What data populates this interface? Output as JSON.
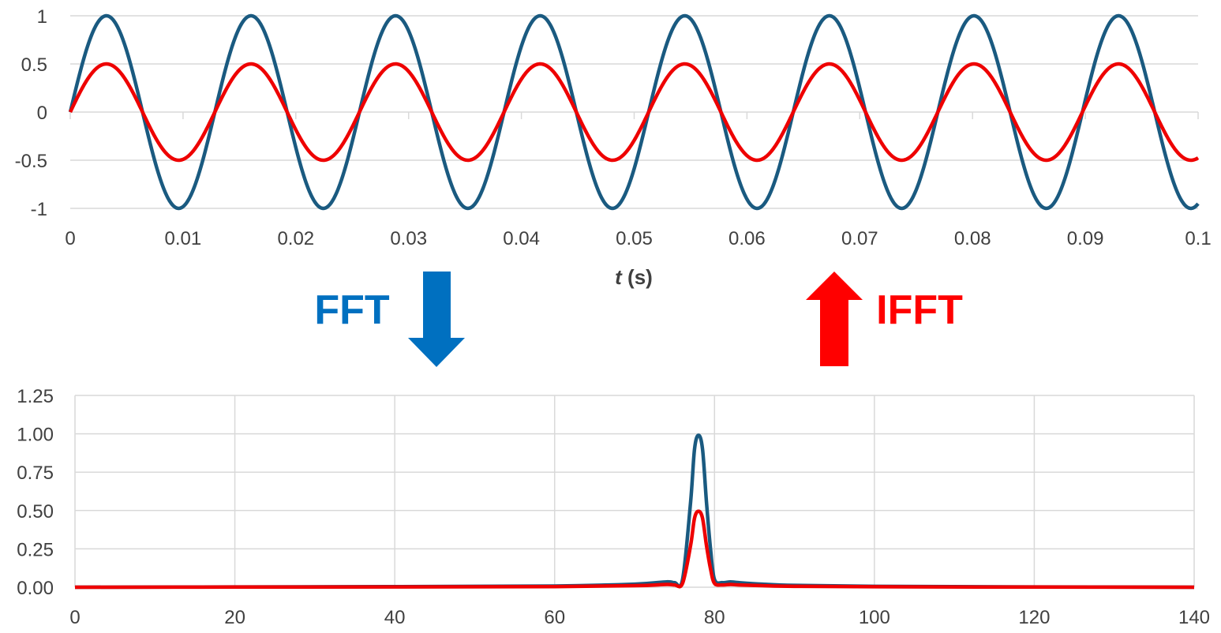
{
  "colors": {
    "signal_1": "#1a5a80",
    "signal_2": "#ee0000",
    "fft_accent": "#0070c0",
    "ifft_accent": "#ff0000",
    "grid": "#d9d9d9",
    "text": "#404040"
  },
  "annotations": {
    "fft_label": "FFT",
    "ifft_label": "IFFT",
    "fft_arrow_icon": "arrow-down-icon",
    "ifft_arrow_icon": "arrow-up-icon"
  },
  "chart_data": [
    {
      "type": "line",
      "title": "",
      "xlabel_italic": "t",
      "xlabel_rest": " (s)",
      "xlim": [
        0,
        0.1
      ],
      "ylim": [
        -1,
        1
      ],
      "x_ticks": [
        "0",
        "0.01",
        "0.02",
        "0.03",
        "0.04",
        "0.05",
        "0.06",
        "0.07",
        "0.08",
        "0.09",
        "0.1"
      ],
      "y_ticks": [
        "1",
        "0.5",
        "0",
        "-0.5",
        "-1"
      ],
      "grid": "horizontal",
      "legend": "none",
      "series": [
        {
          "function": "sine",
          "amplitude": 1.0,
          "frequency_hz": 78,
          "color": "#1a5a80"
        },
        {
          "function": "sine",
          "amplitude": 0.5,
          "frequency_hz": 78,
          "color": "#ee0000"
        }
      ]
    },
    {
      "type": "line",
      "title": "",
      "xlabel": "",
      "xlim": [
        0,
        140
      ],
      "ylim": [
        0,
        1.25
      ],
      "x_ticks": [
        "0",
        "20",
        "40",
        "60",
        "80",
        "100",
        "120",
        "140"
      ],
      "y_ticks": [
        "1.25",
        "1.00",
        "0.75",
        "0.50",
        "0.25",
        "0.00"
      ],
      "grid": "both",
      "legend": "none",
      "series": [
        {
          "color": "#1a5a80",
          "x": [
            0,
            20,
            40,
            60,
            70,
            74,
            75,
            76,
            77,
            77.5,
            78,
            78.5,
            79,
            79.5,
            80,
            81,
            82,
            83,
            86,
            90,
            100,
            120,
            140
          ],
          "y": [
            0.0,
            0.002,
            0.004,
            0.008,
            0.02,
            0.035,
            0.03,
            0.05,
            0.55,
            0.9,
            0.99,
            0.9,
            0.55,
            0.25,
            0.05,
            0.03,
            0.035,
            0.03,
            0.02,
            0.012,
            0.006,
            0.002,
            0.0
          ]
        },
        {
          "color": "#ee0000",
          "x": [
            0,
            20,
            40,
            60,
            70,
            74,
            75,
            76,
            77,
            77.5,
            78,
            78.5,
            79,
            79.5,
            80,
            81,
            82,
            83,
            86,
            90,
            100,
            120,
            140
          ],
          "y": [
            0.0,
            0.001,
            0.002,
            0.004,
            0.01,
            0.018,
            0.015,
            0.025,
            0.27,
            0.45,
            0.495,
            0.45,
            0.27,
            0.12,
            0.025,
            0.015,
            0.018,
            0.015,
            0.01,
            0.006,
            0.003,
            0.001,
            0.0
          ]
        }
      ]
    }
  ]
}
